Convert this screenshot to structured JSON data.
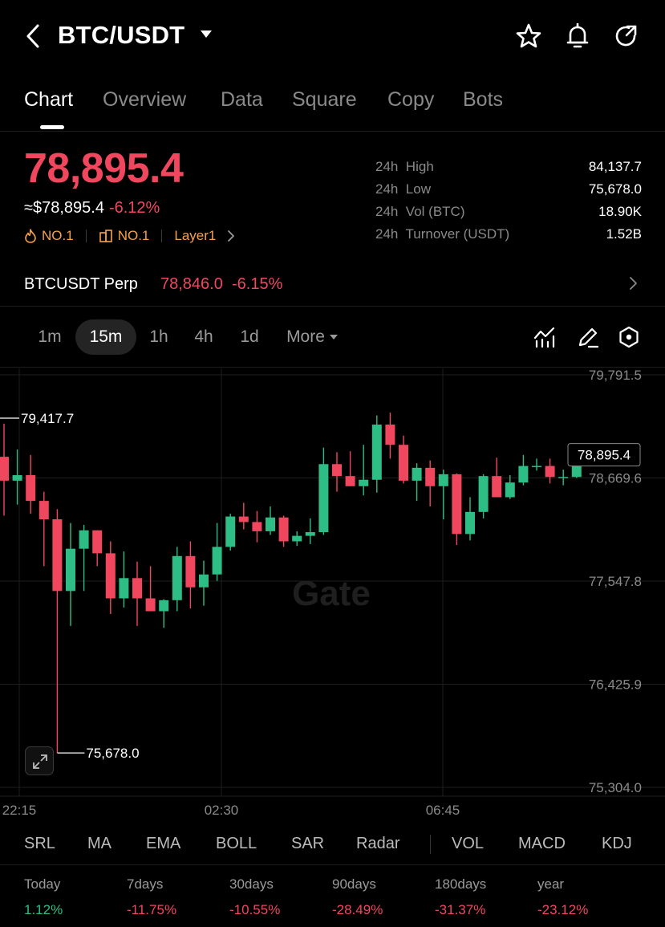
{
  "header": {
    "title": "BTC/USDT",
    "icons": [
      "back-icon",
      "star-icon",
      "bell-icon",
      "share-icon"
    ]
  },
  "tabs": [
    {
      "label": "Chart"
    },
    {
      "label": "Overview"
    },
    {
      "label": "Data"
    },
    {
      "label": "Square"
    },
    {
      "label": "Copy"
    },
    {
      "label": "Bots"
    }
  ],
  "ticker": {
    "price": "78,895.4",
    "usd_value": "≈$78,895.4",
    "change": "-6.12%",
    "badges": [
      {
        "icon": "flame-icon",
        "label": "NO.1"
      },
      {
        "icon": "building-icon",
        "label": "NO.1"
      },
      {
        "icon": "",
        "label": "Layer1"
      }
    ],
    "stats": [
      {
        "key": "24h  High",
        "value": "84,137.7"
      },
      {
        "key": "24h  Low",
        "value": "75,678.0"
      },
      {
        "key": "24h  Vol (BTC)",
        "value": "18.90K"
      },
      {
        "key": "24h  Turnover (USDT)",
        "value": "1.52B"
      }
    ]
  },
  "perp": {
    "name": "BTCUSDT Perp",
    "price": "78,846.0",
    "change": "-6.15%"
  },
  "intervals": [
    {
      "label": "1m"
    },
    {
      "label": "15m"
    },
    {
      "label": "1h"
    },
    {
      "label": "4h"
    },
    {
      "label": "1d"
    },
    {
      "label": "More"
    }
  ],
  "colors": {
    "up": "#2ebd85",
    "down": "#f0475f",
    "accent_badge": "#f7a24b",
    "background": "#000000"
  },
  "chart_data": {
    "type": "candlestick",
    "watermark": "Gate",
    "y_axis_labels": [
      "79,791.5",
      "78,669.6",
      "77,547.8",
      "76,425.9",
      "75,304.0"
    ],
    "ylim": [
      75304.0,
      79791.5
    ],
    "x_axis_labels": [
      "22:15",
      "02:30",
      "06:45"
    ],
    "current_price_label": "78,895.4",
    "high_marker": "79,417.7",
    "low_marker": "75,678.0",
    "candles": [
      {
        "o": 78900,
        "h": 79260,
        "l": 78260,
        "c": 78640
      },
      {
        "o": 78640,
        "h": 78980,
        "l": 78380,
        "c": 78700
      },
      {
        "o": 78700,
        "h": 78920,
        "l": 78280,
        "c": 78420
      },
      {
        "o": 78420,
        "h": 78520,
        "l": 77710,
        "c": 78220
      },
      {
        "o": 78220,
        "h": 78330,
        "l": 75678,
        "c": 77440
      },
      {
        "o": 77440,
        "h": 78180,
        "l": 77060,
        "c": 77900
      },
      {
        "o": 77900,
        "h": 78160,
        "l": 77440,
        "c": 78100
      },
      {
        "o": 78100,
        "h": 78100,
        "l": 77710,
        "c": 77850
      },
      {
        "o": 77850,
        "h": 77980,
        "l": 77190,
        "c": 77360
      },
      {
        "o": 77360,
        "h": 77870,
        "l": 77260,
        "c": 77580
      },
      {
        "o": 77580,
        "h": 77760,
        "l": 77060,
        "c": 77360
      },
      {
        "o": 77360,
        "h": 77710,
        "l": 77240,
        "c": 77220
      },
      {
        "o": 77220,
        "h": 77350,
        "l": 77040,
        "c": 77340
      },
      {
        "o": 77340,
        "h": 77920,
        "l": 77220,
        "c": 77820
      },
      {
        "o": 77820,
        "h": 77980,
        "l": 77250,
        "c": 77480
      },
      {
        "o": 77480,
        "h": 77770,
        "l": 77280,
        "c": 77620
      },
      {
        "o": 77620,
        "h": 78180,
        "l": 77550,
        "c": 77920
      },
      {
        "o": 77920,
        "h": 78280,
        "l": 77880,
        "c": 78250
      },
      {
        "o": 78250,
        "h": 78400,
        "l": 78110,
        "c": 78190
      },
      {
        "o": 78190,
        "h": 78310,
        "l": 77970,
        "c": 78090
      },
      {
        "o": 78090,
        "h": 78360,
        "l": 78050,
        "c": 78240
      },
      {
        "o": 78240,
        "h": 78260,
        "l": 77920,
        "c": 77980
      },
      {
        "o": 77980,
        "h": 78090,
        "l": 77930,
        "c": 78040
      },
      {
        "o": 78040,
        "h": 78230,
        "l": 77950,
        "c": 78080
      },
      {
        "o": 78080,
        "h": 79000,
        "l": 78050,
        "c": 78820
      },
      {
        "o": 78820,
        "h": 78950,
        "l": 78520,
        "c": 78690
      },
      {
        "o": 78690,
        "h": 78960,
        "l": 78580,
        "c": 78580
      },
      {
        "o": 78580,
        "h": 79030,
        "l": 78480,
        "c": 78650
      },
      {
        "o": 78650,
        "h": 79350,
        "l": 78510,
        "c": 79250
      },
      {
        "o": 79250,
        "h": 79380,
        "l": 78880,
        "c": 79030
      },
      {
        "o": 79030,
        "h": 79130,
        "l": 78610,
        "c": 78640
      },
      {
        "o": 78640,
        "h": 78830,
        "l": 78420,
        "c": 78780
      },
      {
        "o": 78780,
        "h": 78860,
        "l": 78360,
        "c": 78580
      },
      {
        "o": 78580,
        "h": 78760,
        "l": 78220,
        "c": 78710
      },
      {
        "o": 78710,
        "h": 78720,
        "l": 77940,
        "c": 78060
      },
      {
        "o": 78060,
        "h": 78460,
        "l": 77990,
        "c": 78300
      },
      {
        "o": 78300,
        "h": 78710,
        "l": 78230,
        "c": 78690
      },
      {
        "o": 78690,
        "h": 78890,
        "l": 78460,
        "c": 78460
      },
      {
        "o": 78460,
        "h": 78700,
        "l": 78440,
        "c": 78620
      },
      {
        "o": 78620,
        "h": 78920,
        "l": 78590,
        "c": 78800
      },
      {
        "o": 78800,
        "h": 78880,
        "l": 78750,
        "c": 78800
      },
      {
        "o": 78800,
        "h": 78880,
        "l": 78610,
        "c": 78680
      },
      {
        "o": 78680,
        "h": 78760,
        "l": 78590,
        "c": 78680
      },
      {
        "o": 78680,
        "h": 78850,
        "l": 78670,
        "c": 78840
      }
    ]
  },
  "indicators": [
    {
      "label": "SRL"
    },
    {
      "label": "MA"
    },
    {
      "label": "EMA"
    },
    {
      "label": "BOLL"
    },
    {
      "label": "SAR"
    },
    {
      "label": "Radar"
    },
    {
      "label": "VOL"
    },
    {
      "label": "MACD"
    },
    {
      "label": "KDJ"
    }
  ],
  "performance": [
    {
      "label": "Today",
      "value": "1.12%",
      "dir": "up"
    },
    {
      "label": "7days",
      "value": "-11.75%",
      "dir": "down"
    },
    {
      "label": "30days",
      "value": "-10.55%",
      "dir": "down"
    },
    {
      "label": "90days",
      "value": "-28.49%",
      "dir": "down"
    },
    {
      "label": "180days",
      "value": "-31.37%",
      "dir": "down"
    },
    {
      "label": "year",
      "value": "-23.12%",
      "dir": "down"
    }
  ]
}
